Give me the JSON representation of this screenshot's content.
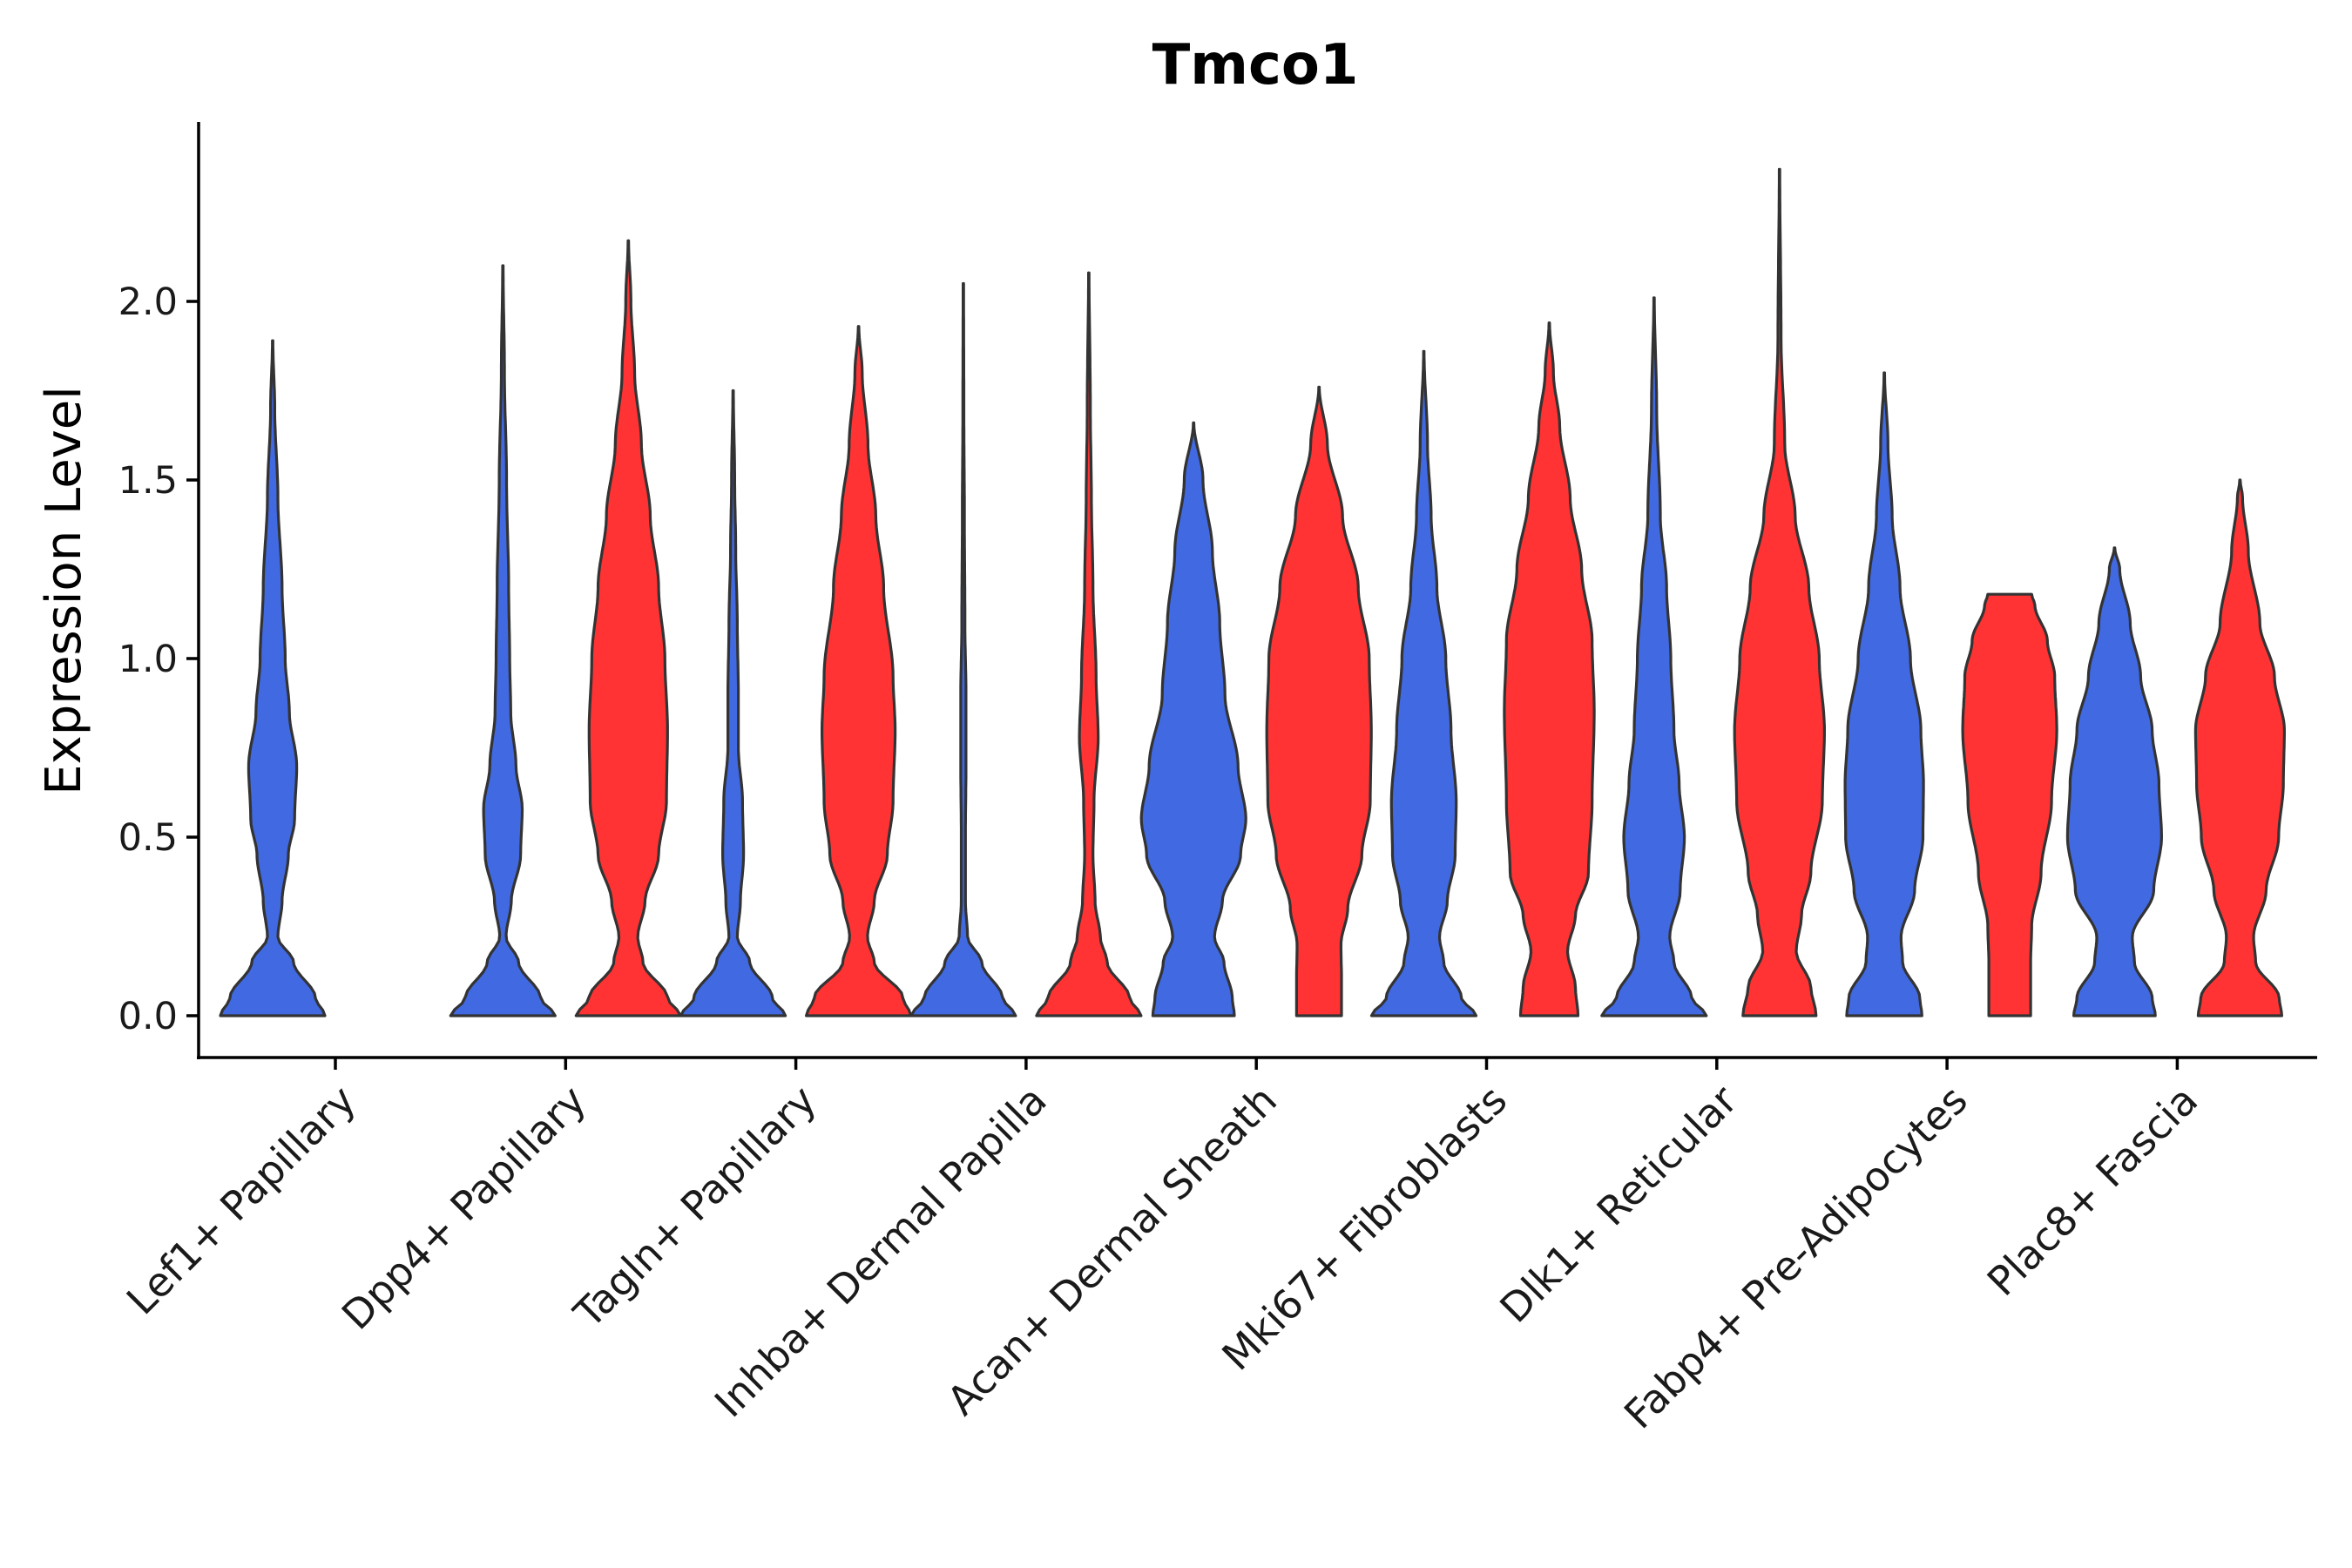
{
  "chart_data": {
    "type": "violin",
    "title": "Tmco1",
    "xlabel": "",
    "ylabel": "Expression Level",
    "ylim": [
      -0.12,
      2.5
    ],
    "yticks": [
      0.0,
      0.5,
      1.0,
      1.5,
      2.0
    ],
    "ytick_labels": [
      "0.0",
      "0.5",
      "1.0",
      "1.5",
      "2.0"
    ],
    "legend": "none",
    "colors": {
      "group1": "#4169E1",
      "group2": "#FF3333",
      "outline": "#333333"
    },
    "categories": [
      "Lef1+ Papillary",
      "Dpp4+ Papillary",
      "Tagln+ Papillary",
      "Inhba+ Dermal Papilla",
      "Acan+ Dermal Sheath",
      "Mki67+ Fibroblasts",
      "Dlk1+ Reticular",
      "Fabp4+ Pre-Adipocytes",
      "Plac8+ Fascia"
    ],
    "violins": [
      {
        "category": "Lef1+ Papillary",
        "group": 1,
        "color": "#4169E1",
        "max": 1.89,
        "profile": [
          [
            0,
            1.0
          ],
          [
            0.05,
            0.82
          ],
          [
            0.15,
            0.4
          ],
          [
            0.22,
            0.1
          ],
          [
            0.32,
            0.18
          ],
          [
            0.45,
            0.3
          ],
          [
            0.55,
            0.42
          ],
          [
            0.7,
            0.46
          ],
          [
            0.85,
            0.32
          ],
          [
            1.0,
            0.24
          ],
          [
            1.2,
            0.18
          ],
          [
            1.45,
            0.1
          ],
          [
            1.7,
            0.04
          ],
          [
            1.89,
            0.005
          ]
        ]
      },
      {
        "category": "Dpp4+ Papillary",
        "group": 1,
        "color": "#4169E1",
        "max": 2.1,
        "profile": [
          [
            0,
            1.0
          ],
          [
            0.05,
            0.72
          ],
          [
            0.15,
            0.3
          ],
          [
            0.22,
            0.06
          ],
          [
            0.32,
            0.16
          ],
          [
            0.45,
            0.34
          ],
          [
            0.58,
            0.37
          ],
          [
            0.7,
            0.25
          ],
          [
            0.85,
            0.15
          ],
          [
            1.0,
            0.13
          ],
          [
            1.2,
            0.11
          ],
          [
            1.5,
            0.07
          ],
          [
            1.8,
            0.03
          ],
          [
            2.1,
            0.005
          ]
        ]
      },
      {
        "category": "Dpp4+ Papillary",
        "group": 2,
        "color": "#FF3333",
        "max": 2.17,
        "profile": [
          [
            0,
            1.0
          ],
          [
            0.05,
            0.75
          ],
          [
            0.15,
            0.28
          ],
          [
            0.22,
            0.18
          ],
          [
            0.32,
            0.32
          ],
          [
            0.45,
            0.58
          ],
          [
            0.6,
            0.73
          ],
          [
            0.8,
            0.75
          ],
          [
            1.0,
            0.7
          ],
          [
            1.2,
            0.58
          ],
          [
            1.4,
            0.42
          ],
          [
            1.6,
            0.25
          ],
          [
            1.8,
            0.12
          ],
          [
            2.0,
            0.05
          ],
          [
            2.17,
            0.005
          ]
        ]
      },
      {
        "category": "Tagln+ Papillary",
        "group": 1,
        "color": "#4169E1",
        "max": 1.75,
        "profile": [
          [
            0,
            1.0
          ],
          [
            0.05,
            0.75
          ],
          [
            0.15,
            0.32
          ],
          [
            0.22,
            0.08
          ],
          [
            0.32,
            0.14
          ],
          [
            0.45,
            0.2
          ],
          [
            0.6,
            0.18
          ],
          [
            0.75,
            0.1
          ],
          [
            0.9,
            0.1
          ],
          [
            1.1,
            0.08
          ],
          [
            1.3,
            0.05
          ],
          [
            1.5,
            0.03
          ],
          [
            1.75,
            0.005
          ]
        ]
      },
      {
        "category": "Tagln+ Papillary",
        "group": 2,
        "color": "#FF3333",
        "max": 1.93,
        "profile": [
          [
            0,
            1.0
          ],
          [
            0.05,
            0.85
          ],
          [
            0.15,
            0.3
          ],
          [
            0.22,
            0.17
          ],
          [
            0.32,
            0.3
          ],
          [
            0.45,
            0.55
          ],
          [
            0.6,
            0.66
          ],
          [
            0.8,
            0.7
          ],
          [
            0.95,
            0.66
          ],
          [
            1.2,
            0.48
          ],
          [
            1.4,
            0.33
          ],
          [
            1.6,
            0.18
          ],
          [
            1.8,
            0.07
          ],
          [
            1.93,
            0.005
          ]
        ]
      },
      {
        "category": "Inhba+ Dermal Papilla",
        "group": 1,
        "color": "#4169E1",
        "max": 2.05,
        "profile": [
          [
            0,
            1.0
          ],
          [
            0.05,
            0.75
          ],
          [
            0.15,
            0.35
          ],
          [
            0.22,
            0.08
          ],
          [
            0.32,
            0.04
          ],
          [
            0.5,
            0.04
          ],
          [
            0.7,
            0.05
          ],
          [
            0.9,
            0.05
          ],
          [
            1.1,
            0.03
          ],
          [
            1.4,
            0.02
          ],
          [
            1.7,
            0.01
          ],
          [
            2.05,
            0.005
          ]
        ]
      },
      {
        "category": "Inhba+ Dermal Papilla",
        "group": 2,
        "color": "#FF3333",
        "max": 2.08,
        "profile": [
          [
            0,
            1.0
          ],
          [
            0.05,
            0.78
          ],
          [
            0.15,
            0.35
          ],
          [
            0.22,
            0.22
          ],
          [
            0.32,
            0.12
          ],
          [
            0.45,
            0.08
          ],
          [
            0.6,
            0.1
          ],
          [
            0.78,
            0.18
          ],
          [
            0.95,
            0.14
          ],
          [
            1.2,
            0.08
          ],
          [
            1.45,
            0.05
          ],
          [
            1.7,
            0.03
          ],
          [
            2.08,
            0.005
          ]
        ]
      },
      {
        "category": "Acan+ Dermal Sheath",
        "group": 1,
        "color": "#4169E1",
        "max": 1.66,
        "profile": [
          [
            0,
            0.78
          ],
          [
            0.05,
            0.74
          ],
          [
            0.15,
            0.58
          ],
          [
            0.22,
            0.4
          ],
          [
            0.32,
            0.55
          ],
          [
            0.45,
            0.9
          ],
          [
            0.55,
            1.0
          ],
          [
            0.7,
            0.85
          ],
          [
            0.9,
            0.6
          ],
          [
            1.1,
            0.5
          ],
          [
            1.3,
            0.36
          ],
          [
            1.5,
            0.18
          ],
          [
            1.66,
            0.005
          ]
        ]
      },
      {
        "category": "Acan+ Dermal Sheath",
        "group": 2,
        "color": "#FF3333",
        "max": 1.76,
        "profile": [
          [
            0,
            0.43
          ],
          [
            0.1,
            0.43
          ],
          [
            0.2,
            0.42
          ],
          [
            0.3,
            0.55
          ],
          [
            0.45,
            0.82
          ],
          [
            0.6,
            0.98
          ],
          [
            0.8,
            1.0
          ],
          [
            1.0,
            0.96
          ],
          [
            1.2,
            0.75
          ],
          [
            1.4,
            0.45
          ],
          [
            1.6,
            0.16
          ],
          [
            1.76,
            0.005
          ]
        ]
      },
      {
        "category": "Mki67+ Fibroblasts",
        "group": 1,
        "color": "#4169E1",
        "max": 1.86,
        "profile": [
          [
            0,
            1.0
          ],
          [
            0.05,
            0.72
          ],
          [
            0.15,
            0.38
          ],
          [
            0.22,
            0.3
          ],
          [
            0.32,
            0.45
          ],
          [
            0.45,
            0.6
          ],
          [
            0.6,
            0.62
          ],
          [
            0.8,
            0.52
          ],
          [
            1.0,
            0.42
          ],
          [
            1.2,
            0.25
          ],
          [
            1.4,
            0.14
          ],
          [
            1.6,
            0.07
          ],
          [
            1.86,
            0.005
          ]
        ]
      },
      {
        "category": "Mki67+ Fibroblasts",
        "group": 2,
        "color": "#FF3333",
        "max": 1.94,
        "profile": [
          [
            0,
            0.55
          ],
          [
            0.08,
            0.5
          ],
          [
            0.18,
            0.35
          ],
          [
            0.28,
            0.5
          ],
          [
            0.4,
            0.75
          ],
          [
            0.6,
            0.82
          ],
          [
            0.85,
            0.86
          ],
          [
            1.05,
            0.82
          ],
          [
            1.25,
            0.62
          ],
          [
            1.45,
            0.4
          ],
          [
            1.65,
            0.2
          ],
          [
            1.8,
            0.08
          ],
          [
            1.94,
            0.005
          ]
        ]
      },
      {
        "category": "Dlk1+ Reticular",
        "group": 1,
        "color": "#4169E1",
        "max": 2.01,
        "profile": [
          [
            0,
            1.0
          ],
          [
            0.05,
            0.72
          ],
          [
            0.15,
            0.38
          ],
          [
            0.22,
            0.3
          ],
          [
            0.35,
            0.5
          ],
          [
            0.5,
            0.58
          ],
          [
            0.65,
            0.48
          ],
          [
            0.8,
            0.38
          ],
          [
            1.0,
            0.32
          ],
          [
            1.2,
            0.24
          ],
          [
            1.4,
            0.12
          ],
          [
            1.7,
            0.05
          ],
          [
            2.01,
            0.005
          ]
        ]
      },
      {
        "category": "Dlk1+ Reticular",
        "group": 2,
        "color": "#FF3333",
        "max": 2.37,
        "profile": [
          [
            0,
            0.7
          ],
          [
            0.08,
            0.6
          ],
          [
            0.18,
            0.32
          ],
          [
            0.28,
            0.42
          ],
          [
            0.4,
            0.6
          ],
          [
            0.6,
            0.82
          ],
          [
            0.8,
            0.86
          ],
          [
            1.0,
            0.76
          ],
          [
            1.2,
            0.56
          ],
          [
            1.4,
            0.3
          ],
          [
            1.6,
            0.1
          ],
          [
            1.9,
            0.03
          ],
          [
            2.37,
            0.005
          ]
        ]
      },
      {
        "category": "Fabp4+ Pre-Adipocytes",
        "group": 1,
        "color": "#4169E1",
        "max": 1.8,
        "profile": [
          [
            0,
            0.72
          ],
          [
            0.05,
            0.68
          ],
          [
            0.15,
            0.35
          ],
          [
            0.22,
            0.32
          ],
          [
            0.35,
            0.58
          ],
          [
            0.5,
            0.74
          ],
          [
            0.65,
            0.75
          ],
          [
            0.8,
            0.7
          ],
          [
            1.0,
            0.5
          ],
          [
            1.2,
            0.3
          ],
          [
            1.4,
            0.15
          ],
          [
            1.6,
            0.07
          ],
          [
            1.8,
            0.005
          ]
        ]
      },
      {
        "category": "Fabp4+ Pre-Adipocytes",
        "group": 2,
        "color": "#FF3333",
        "max": 1.18,
        "profile": [
          [
            0,
            0.4
          ],
          [
            0.15,
            0.4
          ],
          [
            0.25,
            0.42
          ],
          [
            0.4,
            0.6
          ],
          [
            0.6,
            0.8
          ],
          [
            0.8,
            0.9
          ],
          [
            0.95,
            0.86
          ],
          [
            1.05,
            0.72
          ],
          [
            1.15,
            0.48
          ],
          [
            1.18,
            0.42
          ],
          [
            1.18,
            0.005
          ]
        ]
      },
      {
        "category": "Plac8+ Fascia",
        "group": 1,
        "color": "#4169E1",
        "max": 1.31,
        "profile": [
          [
            0,
            0.78
          ],
          [
            0.05,
            0.72
          ],
          [
            0.15,
            0.38
          ],
          [
            0.22,
            0.34
          ],
          [
            0.35,
            0.75
          ],
          [
            0.5,
            0.9
          ],
          [
            0.65,
            0.85
          ],
          [
            0.8,
            0.72
          ],
          [
            0.95,
            0.5
          ],
          [
            1.1,
            0.3
          ],
          [
            1.25,
            0.1
          ],
          [
            1.31,
            0.005
          ]
        ]
      },
      {
        "category": "Plac8+ Fascia",
        "group": 2,
        "color": "#FF3333",
        "max": 1.5,
        "profile": [
          [
            0,
            0.8
          ],
          [
            0.05,
            0.75
          ],
          [
            0.15,
            0.3
          ],
          [
            0.22,
            0.26
          ],
          [
            0.35,
            0.5
          ],
          [
            0.5,
            0.74
          ],
          [
            0.65,
            0.83
          ],
          [
            0.8,
            0.85
          ],
          [
            0.95,
            0.66
          ],
          [
            1.1,
            0.38
          ],
          [
            1.3,
            0.16
          ],
          [
            1.45,
            0.05
          ],
          [
            1.5,
            0.005
          ]
        ]
      }
    ]
  }
}
